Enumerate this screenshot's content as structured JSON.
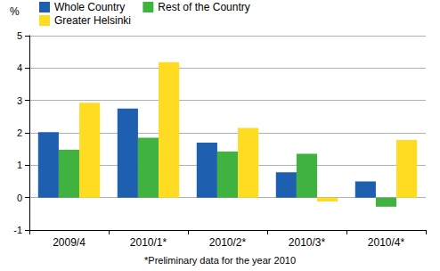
{
  "chart_data": {
    "type": "bar",
    "y_label": "%",
    "x_label": "*Preliminary data for the year 2010",
    "categories": [
      "2009/4",
      "2010/1*",
      "2010/2*",
      "2010/3*",
      "2010/4*"
    ],
    "series": [
      {
        "name": "Whole Country",
        "color": "#1f5fb0",
        "values": [
          2.02,
          2.75,
          1.7,
          0.78,
          0.5
        ]
      },
      {
        "name": "Rest of the Country",
        "color": "#3fb23f",
        "values": [
          1.48,
          1.85,
          1.42,
          1.35,
          -0.28
        ]
      },
      {
        "name": "Greater Helsinki",
        "color": "#ffdb21",
        "values": [
          2.93,
          4.18,
          2.15,
          -0.12,
          1.78
        ]
      }
    ],
    "ylim": [
      -1,
      5
    ],
    "yticks": [
      -1,
      0,
      1,
      2,
      3,
      4,
      5
    ],
    "grid": true,
    "legend": "top-left"
  }
}
